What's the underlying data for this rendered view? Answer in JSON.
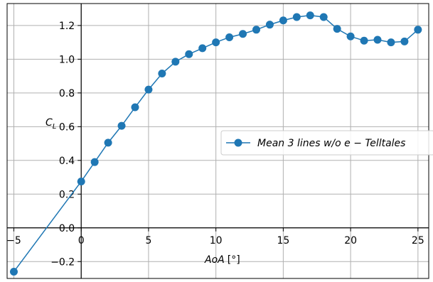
{
  "chart_data": {
    "type": "line",
    "title": "",
    "xlabel_main": "AoA",
    "xlabel_unit": "[°]",
    "ylabel_main": "C",
    "ylabel_sub": "L",
    "xlim": [
      -5.5,
      25.8
    ],
    "ylim": [
      -0.3,
      1.33
    ],
    "x_ticks": [
      -5,
      0,
      5,
      10,
      15,
      20,
      25
    ],
    "y_ticks": [
      -0.2,
      0.0,
      0.2,
      0.4,
      0.6,
      0.8,
      1.0,
      1.2
    ],
    "grid": true,
    "legend_position": "center-right",
    "colors": {
      "series": "#1f77b4",
      "grid": "#b0b0b0",
      "axis": "#000000"
    },
    "series": [
      {
        "name": "Mean 3 lines w/o e − Telltales",
        "x": [
          -5,
          0,
          1,
          2,
          3,
          4,
          5,
          6,
          7,
          8,
          9,
          10,
          11,
          12,
          13,
          14,
          15,
          16,
          17,
          18,
          19,
          20,
          21,
          22,
          23,
          24,
          25
        ],
        "y": [
          -0.26,
          0.275,
          0.39,
          0.505,
          0.605,
          0.715,
          0.82,
          0.915,
          0.985,
          1.03,
          1.065,
          1.1,
          1.13,
          1.15,
          1.175,
          1.205,
          1.23,
          1.25,
          1.26,
          1.25,
          1.18,
          1.135,
          1.11,
          1.115,
          1.1,
          1.105,
          1.175
        ]
      }
    ]
  }
}
